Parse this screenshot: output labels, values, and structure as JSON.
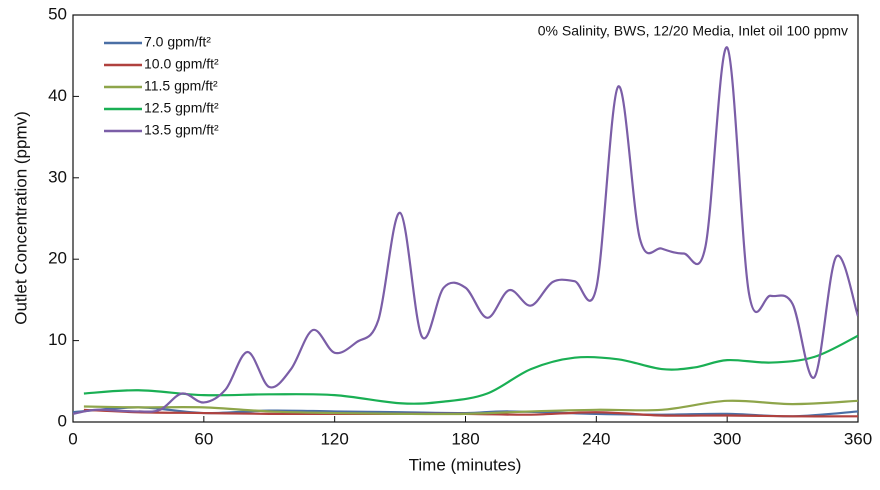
{
  "chart_data": {
    "type": "line",
    "annotation": "0% Salinity, BWS, 12/20 Media, Inlet oil 100 ppmv",
    "x_label": "Time (minutes)",
    "y_label": "Outlet Concentration (ppmv)",
    "xlim": [
      0,
      360
    ],
    "xticks": [
      0,
      60,
      120,
      180,
      240,
      300,
      360
    ],
    "ylim": [
      0,
      50
    ],
    "yticks": [
      0,
      10,
      20,
      30,
      40,
      50
    ],
    "legend": "upper left",
    "series": [
      {
        "name": "7.0 gpm/ft²",
        "color": "#4a6fa5",
        "x": [
          0,
          30,
          60,
          90,
          120,
          150,
          180,
          200,
          240,
          270,
          300,
          330,
          360
        ],
        "values": [
          1.2,
          1.8,
          1.1,
          1.4,
          1.3,
          1.2,
          1.1,
          1.3,
          1.0,
          0.9,
          1.0,
          0.7,
          1.3
        ]
      },
      {
        "name": "10.0 gpm/ft²",
        "color": "#b0413e",
        "x": [
          5,
          30,
          60,
          90,
          120,
          150,
          180,
          210,
          240,
          270,
          300,
          330,
          360
        ],
        "values": [
          1.5,
          1.2,
          1.1,
          1.0,
          1.0,
          1.0,
          1.0,
          0.9,
          1.2,
          0.8,
          0.8,
          0.7,
          0.7
        ]
      },
      {
        "name": "11.5 gpm/ft²",
        "color": "#8ea54a",
        "x": [
          5,
          30,
          60,
          90,
          120,
          150,
          180,
          210,
          240,
          270,
          300,
          330,
          360
        ],
        "values": [
          1.9,
          1.8,
          1.8,
          1.3,
          1.1,
          1.0,
          1.0,
          1.3,
          1.5,
          1.5,
          2.6,
          2.2,
          2.6
        ]
      },
      {
        "name": "12.5 gpm/ft²",
        "color": "#1aaf54",
        "x": [
          5,
          30,
          60,
          90,
          120,
          150,
          170,
          190,
          210,
          230,
          250,
          270,
          285,
          300,
          320,
          340,
          360
        ],
        "values": [
          3.5,
          3.9,
          3.3,
          3.4,
          3.3,
          2.3,
          2.5,
          3.5,
          6.5,
          7.9,
          7.7,
          6.5,
          6.7,
          7.6,
          7.3,
          8.0,
          10.6
        ]
      },
      {
        "name": "13.5 gpm/ft²",
        "color": "#7b5ea7",
        "x": [
          0,
          10,
          20,
          30,
          40,
          50,
          60,
          70,
          80,
          90,
          100,
          110,
          120,
          130,
          140,
          150,
          160,
          170,
          180,
          190,
          200,
          210,
          220,
          230,
          240,
          250,
          260,
          270,
          280,
          290,
          300,
          310,
          320,
          330,
          340,
          350,
          360
        ],
        "values": [
          1.0,
          1.5,
          1.4,
          1.3,
          1.5,
          3.5,
          2.4,
          4.0,
          8.6,
          4.3,
          6.5,
          11.3,
          8.5,
          9.8,
          12.5,
          25.7,
          10.5,
          16.5,
          16.5,
          12.8,
          16.2,
          14.3,
          17.2,
          17.3,
          16.5,
          41.2,
          22.5,
          21.3,
          20.7,
          21.5,
          46.0,
          15.8,
          15.5,
          14.5,
          5.5,
          20.3,
          13.0
        ]
      }
    ]
  }
}
